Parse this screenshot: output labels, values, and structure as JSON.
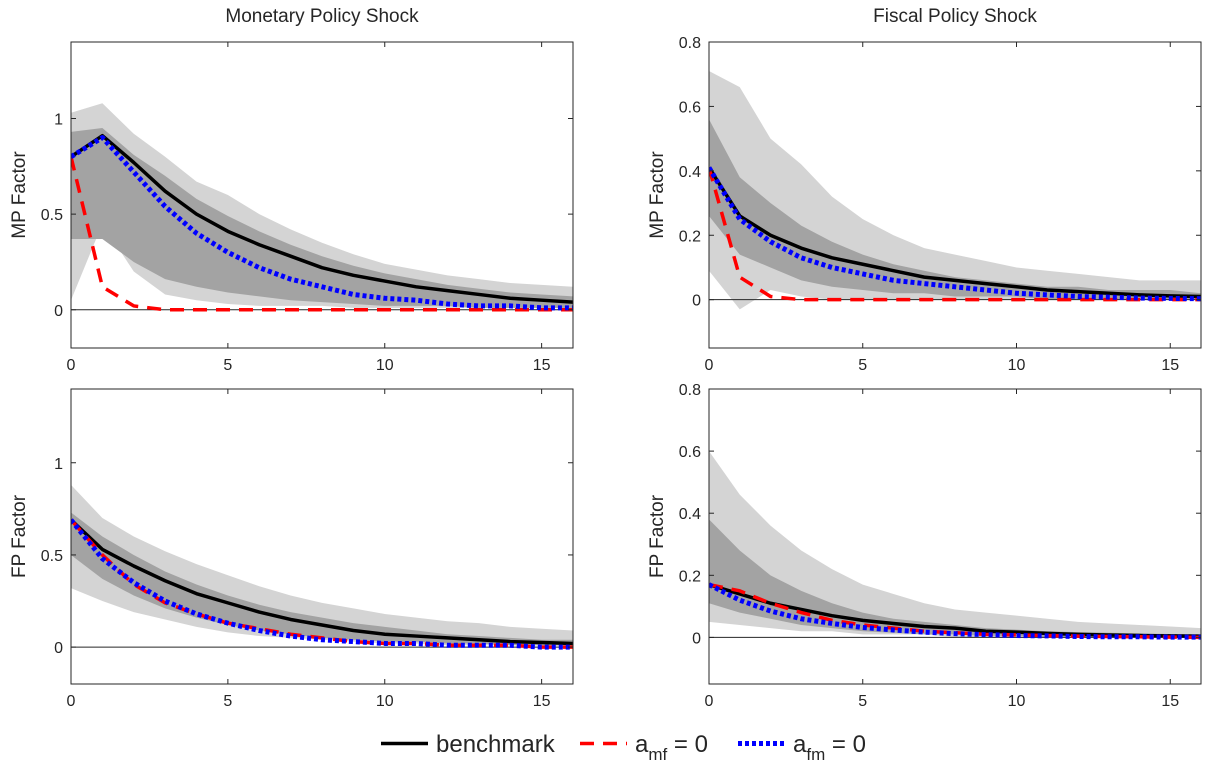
{
  "figure": {
    "legend": {
      "placement": "bottom-center",
      "items": [
        {
          "label": "benchmark",
          "sub": "",
          "suffix": ""
        },
        {
          "label": "a",
          "sub": "mf",
          "suffix": " = 0"
        },
        {
          "label": "a",
          "sub": "fm",
          "suffix": " = 0"
        }
      ]
    }
  },
  "colors": {
    "benchmark": "#000000",
    "amf": "#ff0000",
    "afm": "#0000ff",
    "band_outer": "#d4d4d4",
    "band_inner": "#a3a3a3",
    "axis": "#262626"
  },
  "chart_data": [
    {
      "type": "line",
      "title": "Monetary Policy Shock",
      "ylabel": "MP Factor",
      "xlabel": "",
      "xlim": [
        0,
        16
      ],
      "ylim": [
        -0.2,
        1.4
      ],
      "xticks": [
        0,
        5,
        10,
        15
      ],
      "yticks": [
        0,
        0.5,
        1
      ],
      "ytick_labels": [
        "0",
        "0.5",
        "1"
      ],
      "zero_line": true,
      "x": [
        0,
        1,
        2,
        3,
        4,
        5,
        6,
        7,
        8,
        9,
        10,
        11,
        12,
        13,
        14,
        15,
        16
      ],
      "band_outer": {
        "upper": [
          1.03,
          1.08,
          0.92,
          0.8,
          0.67,
          0.6,
          0.5,
          0.42,
          0.35,
          0.29,
          0.24,
          0.21,
          0.18,
          0.16,
          0.14,
          0.13,
          0.12
        ],
        "lower": [
          0.05,
          0.45,
          0.2,
          0.08,
          0.05,
          0.03,
          0.02,
          0.02,
          0.02,
          0.01,
          0.01,
          0.01,
          0.01,
          0.01,
          0.01,
          0.01,
          0.01
        ]
      },
      "band_inner": {
        "upper": [
          0.93,
          0.95,
          0.81,
          0.7,
          0.58,
          0.49,
          0.41,
          0.34,
          0.28,
          0.23,
          0.19,
          0.16,
          0.13,
          0.11,
          0.09,
          0.08,
          0.07
        ],
        "lower": [
          0.37,
          0.37,
          0.25,
          0.16,
          0.12,
          0.09,
          0.07,
          0.05,
          0.04,
          0.03,
          0.02,
          0.02,
          0.02,
          0.01,
          0.01,
          0.01,
          0.01
        ]
      },
      "series": [
        {
          "key": "benchmark",
          "values": [
            0.8,
            0.91,
            0.77,
            0.62,
            0.5,
            0.41,
            0.34,
            0.28,
            0.22,
            0.18,
            0.15,
            0.12,
            0.1,
            0.08,
            0.06,
            0.05,
            0.04
          ]
        },
        {
          "key": "amf",
          "values": [
            0.8,
            0.12,
            0.02,
            0.0,
            0.0,
            0.0,
            0.0,
            0.0,
            0.0,
            0.0,
            0.0,
            0.0,
            0.0,
            0.0,
            0.0,
            0.0,
            0.0
          ]
        },
        {
          "key": "afm",
          "values": [
            0.8,
            0.9,
            0.72,
            0.54,
            0.4,
            0.3,
            0.22,
            0.16,
            0.12,
            0.08,
            0.06,
            0.05,
            0.03,
            0.02,
            0.02,
            0.01,
            0.01
          ]
        }
      ]
    },
    {
      "type": "line",
      "title": "Fiscal Policy Shock",
      "ylabel": "MP Factor",
      "xlabel": "",
      "xlim": [
        0,
        16
      ],
      "ylim": [
        -0.15,
        0.8
      ],
      "xticks": [
        0,
        5,
        10,
        15
      ],
      "yticks": [
        0,
        0.2,
        0.4,
        0.6,
        0.8
      ],
      "ytick_labels": [
        "0",
        "0.2",
        "0.4",
        "0.6",
        "0.8"
      ],
      "zero_line": true,
      "x": [
        0,
        1,
        2,
        3,
        4,
        5,
        6,
        7,
        8,
        9,
        10,
        11,
        12,
        13,
        14,
        15,
        16
      ],
      "band_outer": {
        "upper": [
          0.71,
          0.66,
          0.5,
          0.42,
          0.32,
          0.25,
          0.2,
          0.16,
          0.14,
          0.12,
          0.1,
          0.09,
          0.08,
          0.07,
          0.06,
          0.06,
          0.06
        ],
        "lower": [
          0.09,
          -0.03,
          0.03,
          0.01,
          0.0,
          0.0,
          0.0,
          0.0,
          0.0,
          0.0,
          0.0,
          0.0,
          0.0,
          0.0,
          0.0,
          0.0,
          0.0
        ]
      },
      "band_inner": {
        "upper": [
          0.56,
          0.38,
          0.3,
          0.23,
          0.18,
          0.14,
          0.11,
          0.09,
          0.07,
          0.06,
          0.05,
          0.04,
          0.04,
          0.03,
          0.03,
          0.03,
          0.02
        ],
        "lower": [
          0.26,
          0.14,
          0.1,
          0.06,
          0.04,
          0.03,
          0.02,
          0.02,
          0.01,
          0.01,
          0.01,
          0.0,
          0.0,
          0.0,
          0.0,
          0.0,
          0.0
        ]
      },
      "series": [
        {
          "key": "benchmark",
          "values": [
            0.41,
            0.26,
            0.2,
            0.16,
            0.13,
            0.11,
            0.09,
            0.07,
            0.06,
            0.05,
            0.04,
            0.03,
            0.025,
            0.02,
            0.015,
            0.012,
            0.01
          ]
        },
        {
          "key": "amf",
          "values": [
            0.41,
            0.07,
            0.01,
            0.0,
            0.0,
            0.0,
            0.0,
            0.0,
            0.0,
            0.0,
            0.0,
            0.0,
            0.0,
            0.0,
            0.0,
            0.0,
            0.0
          ]
        },
        {
          "key": "afm",
          "values": [
            0.41,
            0.25,
            0.18,
            0.13,
            0.1,
            0.08,
            0.06,
            0.05,
            0.04,
            0.03,
            0.02,
            0.015,
            0.01,
            0.008,
            0.005,
            0.004,
            0.003
          ]
        }
      ]
    },
    {
      "type": "line",
      "title": "",
      "ylabel": "FP Factor",
      "xlabel": "",
      "xlim": [
        0,
        16
      ],
      "ylim": [
        -0.2,
        1.4
      ],
      "xticks": [
        0,
        5,
        10,
        15
      ],
      "yticks": [
        0,
        0.5,
        1
      ],
      "ytick_labels": [
        "0",
        "0.5",
        "1"
      ],
      "zero_line": true,
      "x": [
        0,
        1,
        2,
        3,
        4,
        5,
        6,
        7,
        8,
        9,
        10,
        11,
        12,
        13,
        14,
        15,
        16
      ],
      "band_outer": {
        "upper": [
          0.88,
          0.7,
          0.6,
          0.52,
          0.45,
          0.39,
          0.33,
          0.28,
          0.24,
          0.21,
          0.18,
          0.16,
          0.14,
          0.13,
          0.11,
          0.1,
          0.09
        ],
        "lower": [
          0.32,
          0.25,
          0.19,
          0.15,
          0.11,
          0.08,
          0.06,
          0.05,
          0.04,
          0.03,
          0.02,
          0.02,
          0.01,
          0.01,
          0.01,
          0.01,
          0.0
        ]
      },
      "band_inner": {
        "upper": [
          0.73,
          0.6,
          0.5,
          0.41,
          0.34,
          0.28,
          0.23,
          0.19,
          0.16,
          0.13,
          0.11,
          0.09,
          0.07,
          0.06,
          0.05,
          0.04,
          0.04
        ],
        "lower": [
          0.5,
          0.37,
          0.28,
          0.21,
          0.16,
          0.12,
          0.09,
          0.07,
          0.05,
          0.04,
          0.03,
          0.03,
          0.02,
          0.02,
          0.01,
          0.01,
          0.01
        ]
      },
      "series": [
        {
          "key": "benchmark",
          "values": [
            0.69,
            0.53,
            0.44,
            0.36,
            0.29,
            0.24,
            0.19,
            0.15,
            0.12,
            0.09,
            0.07,
            0.06,
            0.05,
            0.04,
            0.03,
            0.025,
            0.02
          ]
        },
        {
          "key": "amf",
          "values": [
            0.69,
            0.5,
            0.34,
            0.24,
            0.18,
            0.13,
            0.1,
            0.07,
            0.05,
            0.03,
            0.02,
            0.02,
            0.01,
            0.01,
            0.01,
            0.0,
            0.0
          ]
        },
        {
          "key": "afm",
          "values": [
            0.69,
            0.48,
            0.35,
            0.25,
            0.18,
            0.13,
            0.09,
            0.06,
            0.04,
            0.03,
            0.02,
            0.02,
            0.01,
            0.01,
            0.01,
            0.0,
            0.0
          ]
        }
      ]
    },
    {
      "type": "line",
      "title": "",
      "ylabel": "FP Factor",
      "xlabel": "",
      "xlim": [
        0,
        16
      ],
      "ylim": [
        -0.15,
        0.8
      ],
      "xticks": [
        0,
        5,
        10,
        15
      ],
      "yticks": [
        0,
        0.2,
        0.4,
        0.6,
        0.8
      ],
      "ytick_labels": [
        "0",
        "0.2",
        "0.4",
        "0.6",
        "0.8"
      ],
      "zero_line": true,
      "x": [
        0,
        1,
        2,
        3,
        4,
        5,
        6,
        7,
        8,
        9,
        10,
        11,
        12,
        13,
        14,
        15,
        16
      ],
      "band_outer": {
        "upper": [
          0.6,
          0.46,
          0.36,
          0.28,
          0.22,
          0.17,
          0.14,
          0.11,
          0.09,
          0.08,
          0.07,
          0.06,
          0.05,
          0.045,
          0.04,
          0.035,
          0.03
        ],
        "lower": [
          0.05,
          0.04,
          0.03,
          0.02,
          0.02,
          0.01,
          0.01,
          0.01,
          0.0,
          0.0,
          0.0,
          0.0,
          0.0,
          0.0,
          0.0,
          0.0,
          0.0
        ]
      },
      "band_inner": {
        "upper": [
          0.38,
          0.28,
          0.2,
          0.15,
          0.11,
          0.08,
          0.06,
          0.05,
          0.04,
          0.03,
          0.025,
          0.02,
          0.017,
          0.015,
          0.013,
          0.011,
          0.01
        ],
        "lower": [
          0.11,
          0.08,
          0.06,
          0.04,
          0.03,
          0.02,
          0.015,
          0.01,
          0.01,
          0.005,
          0.005,
          0.0,
          0.0,
          0.0,
          0.0,
          0.0,
          0.0
        ]
      },
      "series": [
        {
          "key": "benchmark",
          "values": [
            0.17,
            0.14,
            0.11,
            0.09,
            0.07,
            0.055,
            0.045,
            0.035,
            0.03,
            0.02,
            0.017,
            0.013,
            0.01,
            0.008,
            0.006,
            0.005,
            0.004
          ]
        },
        {
          "key": "amf",
          "values": [
            0.17,
            0.15,
            0.11,
            0.08,
            0.055,
            0.04,
            0.03,
            0.02,
            0.015,
            0.01,
            0.008,
            0.006,
            0.004,
            0.003,
            0.002,
            0.001,
            0.0
          ]
        },
        {
          "key": "afm",
          "values": [
            0.17,
            0.12,
            0.085,
            0.06,
            0.045,
            0.032,
            0.024,
            0.017,
            0.012,
            0.009,
            0.006,
            0.005,
            0.003,
            0.002,
            0.002,
            0.001,
            0.001
          ]
        }
      ]
    }
  ]
}
